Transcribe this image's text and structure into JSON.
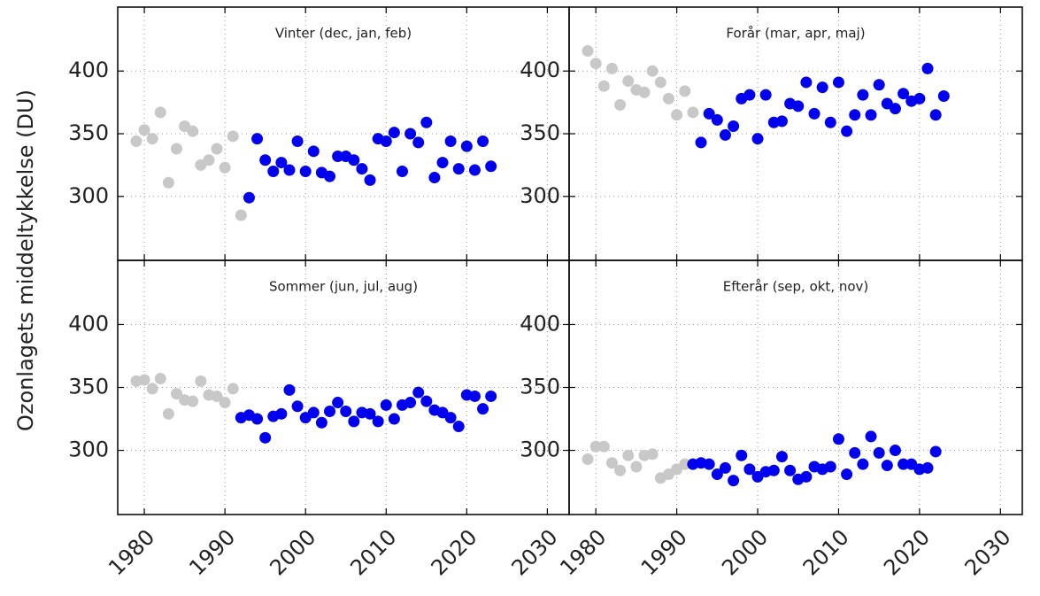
{
  "ylabel": "Ozonlagets middeltykkelse (DU)",
  "chart_data": [
    {
      "type": "scatter",
      "title": "Vinter (dec, jan, feb)",
      "xlim": [
        1976.7,
        2032.7
      ],
      "xticks": [
        1980,
        1990,
        2000,
        2010,
        2020,
        2030
      ],
      "ylim": [
        249,
        451
      ],
      "yticks": [
        300,
        350,
        400
      ],
      "grid": true,
      "series": [
        {
          "color": "#c8c8c8",
          "x": [
            1979,
            1980,
            1981,
            1982,
            1983,
            1984,
            1985,
            1986,
            1987,
            1988,
            1989,
            1990,
            1991,
            1992
          ],
          "values": [
            344,
            353,
            346,
            367,
            311,
            338,
            356,
            352,
            325,
            329,
            338,
            323,
            348,
            285
          ]
        },
        {
          "color": "#0000ee",
          "x": [
            1993,
            1994,
            1995,
            1996,
            1997,
            1998,
            1999,
            2000,
            2001,
            2002,
            2003,
            2004,
            2005,
            2006,
            2007,
            2008,
            2009,
            2010,
            2011,
            2012,
            2013,
            2014,
            2015,
            2016,
            2017,
            2018,
            2019,
            2020,
            2021,
            2022,
            2023
          ],
          "values": [
            299,
            346,
            329,
            320,
            327,
            321,
            344,
            320,
            336,
            319,
            316,
            332,
            332,
            329,
            322,
            313,
            346,
            344,
            351,
            320,
            350,
            343,
            359,
            315,
            327,
            344,
            322,
            340,
            321,
            344,
            324
          ]
        }
      ]
    },
    {
      "type": "scatter",
      "title": "Forår (mar, apr, maj)",
      "xlim": [
        1976.7,
        2032.7
      ],
      "xticks": [
        1980,
        1990,
        2000,
        2010,
        2020,
        2030
      ],
      "ylim": [
        249,
        451
      ],
      "yticks": [
        300,
        350,
        400
      ],
      "grid": true,
      "series": [
        {
          "color": "#c8c8c8",
          "x": [
            1979,
            1980,
            1981,
            1982,
            1983,
            1984,
            1985,
            1986,
            1987,
            1988,
            1989,
            1990,
            1991,
            1992
          ],
          "values": [
            416,
            406,
            388,
            402,
            373,
            392,
            385,
            383,
            400,
            391,
            378,
            365,
            384,
            367
          ]
        },
        {
          "color": "#0000ee",
          "x": [
            1993,
            1994,
            1995,
            1996,
            1997,
            1998,
            1999,
            2000,
            2001,
            2002,
            2003,
            2004,
            2005,
            2006,
            2007,
            2008,
            2009,
            2010,
            2011,
            2012,
            2013,
            2014,
            2015,
            2016,
            2017,
            2018,
            2019,
            2020,
            2021,
            2022,
            2023
          ],
          "values": [
            343,
            366,
            361,
            349,
            356,
            378,
            381,
            346,
            381,
            359,
            360,
            374,
            372,
            391,
            366,
            387,
            359,
            391,
            352,
            365,
            381,
            365,
            389,
            374,
            370,
            382,
            376,
            378,
            402,
            365,
            380
          ]
        }
      ]
    },
    {
      "type": "scatter",
      "title": "Sommer (jun, jul, aug)",
      "xlim": [
        1976.7,
        2032.7
      ],
      "xticks": [
        1980,
        1990,
        2000,
        2010,
        2020,
        2030
      ],
      "ylim": [
        249,
        451
      ],
      "yticks": [
        300,
        350,
        400
      ],
      "grid": true,
      "series": [
        {
          "color": "#c8c8c8",
          "x": [
            1979,
            1980,
            1981,
            1982,
            1983,
            1984,
            1985,
            1986,
            1987,
            1988,
            1989,
            1990,
            1991
          ],
          "values": [
            355,
            356,
            349,
            357,
            329,
            345,
            340,
            339,
            355,
            344,
            343,
            338,
            349
          ]
        },
        {
          "color": "#0000ee",
          "x": [
            1992,
            1993,
            1994,
            1995,
            1996,
            1997,
            1998,
            1999,
            2000,
            2001,
            2002,
            2003,
            2004,
            2005,
            2006,
            2007,
            2008,
            2009,
            2010,
            2011,
            2012,
            2013,
            2014,
            2015,
            2016,
            2017,
            2018,
            2019,
            2020,
            2021,
            2022,
            2023
          ],
          "values": [
            326,
            328,
            325,
            310,
            327,
            329,
            348,
            335,
            326,
            330,
            322,
            331,
            338,
            331,
            323,
            330,
            329,
            323,
            336,
            325,
            336,
            338,
            346,
            339,
            332,
            330,
            326,
            319,
            344,
            343,
            333,
            343
          ]
        }
      ]
    },
    {
      "type": "scatter",
      "title": "Efterår (sep, okt, nov)",
      "xlim": [
        1976.7,
        2032.7
      ],
      "xticks": [
        1980,
        1990,
        2000,
        2010,
        2020,
        2030
      ],
      "ylim": [
        249,
        451
      ],
      "yticks": [
        300,
        350,
        400
      ],
      "grid": true,
      "series": [
        {
          "color": "#c8c8c8",
          "x": [
            1979,
            1980,
            1981,
            1982,
            1983,
            1984,
            1985,
            1986,
            1987,
            1988,
            1989,
            1990,
            1991
          ],
          "values": [
            293,
            303,
            303,
            290,
            284,
            296,
            287,
            296,
            297,
            278,
            281,
            285,
            289
          ]
        },
        {
          "color": "#0000ee",
          "x": [
            1992,
            1993,
            1994,
            1995,
            1996,
            1997,
            1998,
            1999,
            2000,
            2001,
            2002,
            2003,
            2004,
            2005,
            2006,
            2007,
            2008,
            2009,
            2010,
            2011,
            2012,
            2013,
            2014,
            2015,
            2016,
            2017,
            2018,
            2019,
            2020,
            2021,
            2022
          ],
          "values": [
            289,
            290,
            289,
            281,
            286,
            276,
            296,
            285,
            279,
            283,
            284,
            295,
            284,
            277,
            279,
            287,
            285,
            287,
            309,
            281,
            298,
            289,
            311,
            298,
            288,
            300,
            289,
            289,
            285,
            286,
            299
          ]
        }
      ]
    }
  ]
}
